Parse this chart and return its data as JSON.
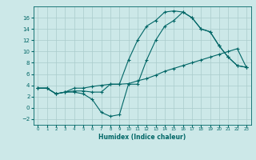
{
  "xlabel": "Humidex (Indice chaleur)",
  "bg_color": "#cce8e8",
  "grid_color": "#aacccc",
  "line_color": "#006666",
  "xlim": [
    -0.5,
    23.5
  ],
  "ylim": [
    -3,
    18
  ],
  "xticks": [
    0,
    1,
    2,
    3,
    4,
    5,
    6,
    7,
    8,
    9,
    10,
    11,
    12,
    13,
    14,
    15,
    16,
    17,
    18,
    19,
    20,
    21,
    22,
    23
  ],
  "yticks": [
    -2,
    0,
    2,
    4,
    6,
    8,
    10,
    12,
    14,
    16
  ],
  "line1_x": [
    0,
    1,
    2,
    3,
    4,
    5,
    6,
    7,
    8,
    9,
    10,
    11,
    12,
    13,
    14,
    15,
    16,
    17,
    18,
    19,
    20,
    21,
    22,
    23
  ],
  "line1_y": [
    3.5,
    3.5,
    2.5,
    2.8,
    3.0,
    3.0,
    2.8,
    2.8,
    4.2,
    4.2,
    8.5,
    12.0,
    14.5,
    15.5,
    17.0,
    17.2,
    17.0,
    16.0,
    14.0,
    13.5,
    11.0,
    9.0,
    7.5,
    7.2
  ],
  "line2_x": [
    0,
    1,
    2,
    3,
    4,
    5,
    6,
    7,
    8,
    9,
    10,
    11,
    12,
    13,
    14,
    15,
    16,
    17,
    18,
    19,
    20,
    21,
    22,
    23
  ],
  "line2_y": [
    3.5,
    3.5,
    2.5,
    2.8,
    3.5,
    3.5,
    3.8,
    4.0,
    4.2,
    4.2,
    4.3,
    4.8,
    5.2,
    5.8,
    6.5,
    7.0,
    7.5,
    8.0,
    8.5,
    9.0,
    9.5,
    10.0,
    10.5,
    7.2
  ],
  "line3_x": [
    0,
    1,
    2,
    3,
    4,
    5,
    6,
    7,
    8,
    9,
    10,
    11,
    12,
    13,
    14,
    15,
    16,
    17,
    18,
    19,
    20,
    21,
    22,
    23
  ],
  "line3_y": [
    3.5,
    3.5,
    2.5,
    2.8,
    2.8,
    2.5,
    1.5,
    -0.8,
    -1.5,
    -1.2,
    4.2,
    4.2,
    8.5,
    12.0,
    14.5,
    15.5,
    17.0,
    16.0,
    14.0,
    13.5,
    11.0,
    9.0,
    7.5,
    7.2
  ]
}
